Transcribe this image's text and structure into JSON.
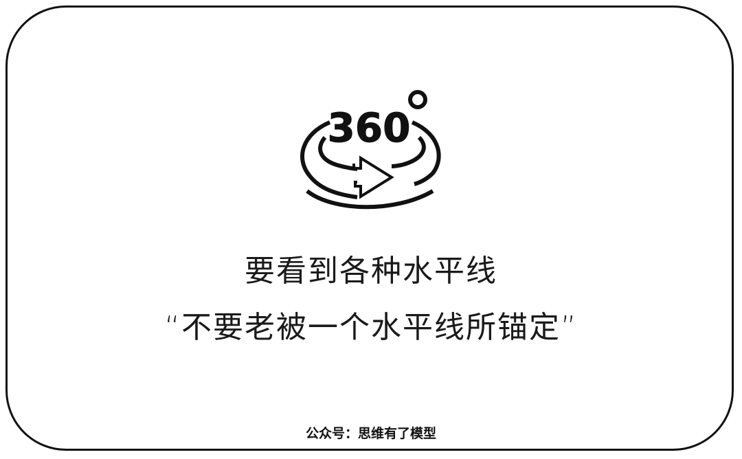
{
  "icon": {
    "name": "rotate-360-icon",
    "label": "360"
  },
  "headline": "要看到各种水平线",
  "quote": "“不要老被一个水平线所锚定”",
  "footer": "公众号：思维有了模型",
  "colors": {
    "ink": "#111111",
    "background": "#ffffff"
  }
}
